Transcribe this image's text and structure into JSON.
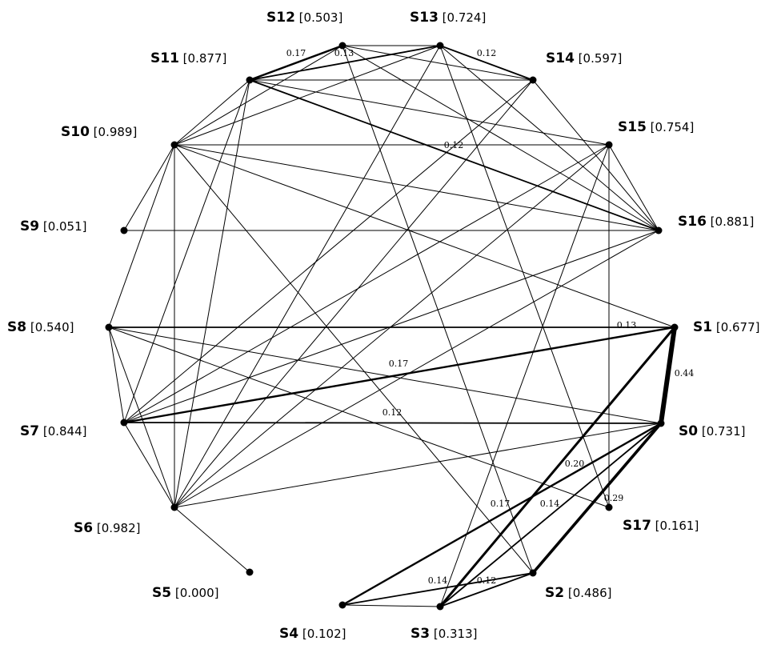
{
  "nodes": [
    {
      "id": "S0",
      "value": "[0.731]"
    },
    {
      "id": "S1",
      "value": "[0.677]"
    },
    {
      "id": "S2",
      "value": "[0.486]"
    },
    {
      "id": "S3",
      "value": "[0.313]"
    },
    {
      "id": "S4",
      "value": "[0.102]"
    },
    {
      "id": "S5",
      "value": "[0.000]"
    },
    {
      "id": "S6",
      "value": "[0.982]"
    },
    {
      "id": "S7",
      "value": "[0.844]"
    },
    {
      "id": "S8",
      "value": "[0.540]"
    },
    {
      "id": "S9",
      "value": "[0.051]"
    },
    {
      "id": "S10",
      "value": "[0.989]"
    },
    {
      "id": "S11",
      "value": "[0.877]"
    },
    {
      "id": "S12",
      "value": "[0.503]"
    },
    {
      "id": "S13",
      "value": "[0.724]"
    },
    {
      "id": "S14",
      "value": "[0.597]"
    },
    {
      "id": "S15",
      "value": "[0.754]"
    },
    {
      "id": "S16",
      "value": "[0.881]"
    },
    {
      "id": "S17",
      "value": "[0.161]"
    }
  ],
  "edges": [
    {
      "source": "S1",
      "target": "S0",
      "weight": 0.44,
      "label": "0.44"
    },
    {
      "source": "S1",
      "target": "S3",
      "weight": 0.2,
      "label": "0.20"
    },
    {
      "source": "S0",
      "target": "S2",
      "weight": 0.29,
      "label": "0.29"
    },
    {
      "source": "S1",
      "target": "S7",
      "weight": 0.17,
      "label": "0.17"
    },
    {
      "source": "S1",
      "target": "S8",
      "weight": 0.13,
      "label": "0.13"
    },
    {
      "source": "S0",
      "target": "S7",
      "weight": 0.12,
      "label": "0.12"
    },
    {
      "source": "S0",
      "target": "S3",
      "weight": 0.14,
      "label": "0.14"
    },
    {
      "source": "S0",
      "target": "S4",
      "weight": 0.17,
      "label": "0.17"
    },
    {
      "source": "S0",
      "target": "S8",
      "weight": 0.07,
      "label": ""
    },
    {
      "source": "S0",
      "target": "S6",
      "weight": 0.07,
      "label": ""
    },
    {
      "source": "S2",
      "target": "S3",
      "weight": 0.12,
      "label": "0.12"
    },
    {
      "source": "S2",
      "target": "S4",
      "weight": 0.14,
      "label": "0.14"
    },
    {
      "source": "S2",
      "target": "S12",
      "weight": 0.07,
      "label": ""
    },
    {
      "source": "S2",
      "target": "S10",
      "weight": 0.07,
      "label": ""
    },
    {
      "source": "S3",
      "target": "S15",
      "weight": 0.07,
      "label": ""
    },
    {
      "source": "S11",
      "target": "S16",
      "weight": 0.12,
      "label": "0.12"
    },
    {
      "source": "S11",
      "target": "S12",
      "weight": 0.17,
      "label": "0.17"
    },
    {
      "source": "S11",
      "target": "S13",
      "weight": 0.13,
      "label": "0.13"
    },
    {
      "source": "S13",
      "target": "S14",
      "weight": 0.12,
      "label": "0.12"
    },
    {
      "source": "S11",
      "target": "S14",
      "weight": 0.07,
      "label": ""
    },
    {
      "source": "S11",
      "target": "S15",
      "weight": 0.07,
      "label": ""
    },
    {
      "source": "S11",
      "target": "S6",
      "weight": 0.07,
      "label": ""
    },
    {
      "source": "S11",
      "target": "S7",
      "weight": 0.07,
      "label": ""
    },
    {
      "source": "S11",
      "target": "S10",
      "weight": 0.07,
      "label": ""
    },
    {
      "source": "S12",
      "target": "S13",
      "weight": 0.07,
      "label": ""
    },
    {
      "source": "S12",
      "target": "S14",
      "weight": 0.07,
      "label": ""
    },
    {
      "source": "S12",
      "target": "S16",
      "weight": 0.07,
      "label": ""
    },
    {
      "source": "S12",
      "target": "S10",
      "weight": 0.07,
      "label": ""
    },
    {
      "source": "S13",
      "target": "S10",
      "weight": 0.07,
      "label": ""
    },
    {
      "source": "S13",
      "target": "S16",
      "weight": 0.07,
      "label": ""
    },
    {
      "source": "S13",
      "target": "S6",
      "weight": 0.07,
      "label": ""
    },
    {
      "source": "S13",
      "target": "S17",
      "weight": 0.07,
      "label": ""
    },
    {
      "source": "S14",
      "target": "S16",
      "weight": 0.07,
      "label": ""
    },
    {
      "source": "S14",
      "target": "S7",
      "weight": 0.07,
      "label": ""
    },
    {
      "source": "S14",
      "target": "S6",
      "weight": 0.07,
      "label": ""
    },
    {
      "source": "S15",
      "target": "S10",
      "weight": 0.07,
      "label": ""
    },
    {
      "source": "S15",
      "target": "S16",
      "weight": 0.07,
      "label": ""
    },
    {
      "source": "S15",
      "target": "S17",
      "weight": 0.07,
      "label": ""
    },
    {
      "source": "S15",
      "target": "S7",
      "weight": 0.07,
      "label": ""
    },
    {
      "source": "S15",
      "target": "S6",
      "weight": 0.07,
      "label": ""
    },
    {
      "source": "S16",
      "target": "S9",
      "weight": 0.07,
      "label": ""
    },
    {
      "source": "S16",
      "target": "S10",
      "weight": 0.07,
      "label": ""
    },
    {
      "source": "S16",
      "target": "S7",
      "weight": 0.07,
      "label": ""
    },
    {
      "source": "S16",
      "target": "S6",
      "weight": 0.07,
      "label": ""
    },
    {
      "source": "S10",
      "target": "S1",
      "weight": 0.07,
      "label": ""
    },
    {
      "source": "S10",
      "target": "S6",
      "weight": 0.07,
      "label": ""
    },
    {
      "source": "S10",
      "target": "S8",
      "weight": 0.07,
      "label": ""
    },
    {
      "source": "S10",
      "target": "S9",
      "weight": 0.07,
      "label": ""
    },
    {
      "source": "S10",
      "target": "S6",
      "weight": 0.07,
      "label": ""
    },
    {
      "source": "S8",
      "target": "S7",
      "weight": 0.07,
      "label": ""
    },
    {
      "source": "S8",
      "target": "S6",
      "weight": 0.07,
      "label": ""
    },
    {
      "source": "S8",
      "target": "S17",
      "weight": 0.07,
      "label": ""
    },
    {
      "source": "S7",
      "target": "S6",
      "weight": 0.07,
      "label": ""
    },
    {
      "source": "S6",
      "target": "S5",
      "weight": 0.07,
      "label": ""
    },
    {
      "source": "S3",
      "target": "S4",
      "weight": 0.07,
      "label": ""
    }
  ]
}
